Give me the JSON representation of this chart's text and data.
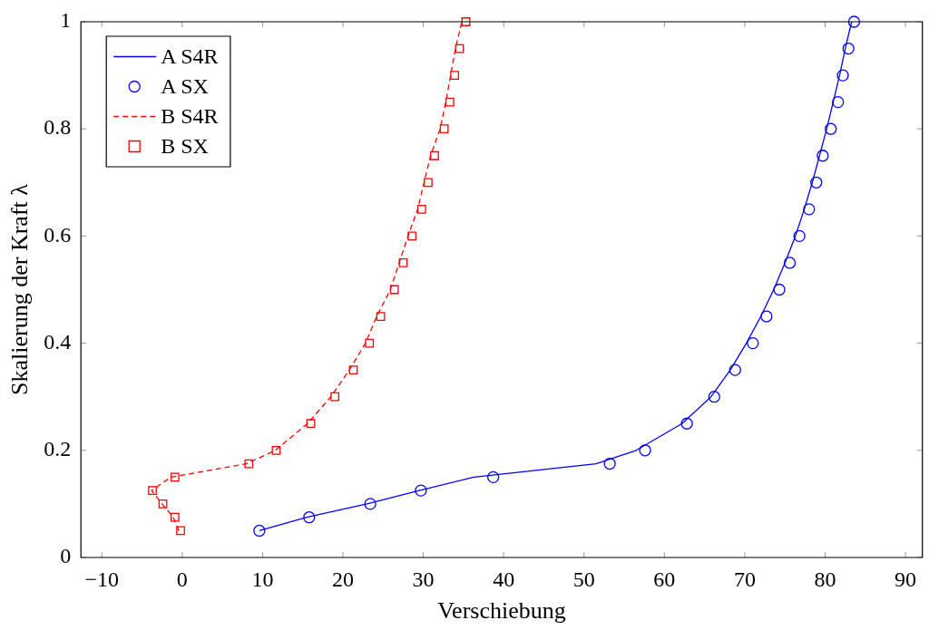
{
  "chart_data": {
    "type": "line",
    "xlabel": "Verschiebung",
    "ylabel": "Skalierung der Kraft λ",
    "xlim": [
      -12.6,
      92.1
    ],
    "ylim": [
      0,
      1
    ],
    "xticks": [
      {
        "value": -10,
        "label": "−10"
      },
      0,
      10,
      20,
      30,
      40,
      50,
      60,
      70,
      80,
      90
    ],
    "yticks": [
      0,
      0.2,
      0.4,
      0.6,
      0.8,
      1
    ],
    "legend": "top left",
    "series": [
      {
        "name": "A S4R",
        "type": "line",
        "color": "#0000ff",
        "marker": "none",
        "line_style": "solid",
        "x": [
          9.6,
          15.5,
          23,
          29.5,
          36.3,
          51.5,
          56.5,
          62.2,
          65.8,
          68.2,
          70.2,
          72.0,
          73.6,
          75.0,
          76.3,
          77.4,
          78.4,
          79.3,
          80.2,
          81.0,
          81.8,
          82.5,
          83.3
        ],
        "values": [
          0.05,
          0.075,
          0.1,
          0.125,
          0.15,
          0.175,
          0.2,
          0.25,
          0.3,
          0.35,
          0.4,
          0.45,
          0.5,
          0.55,
          0.6,
          0.65,
          0.7,
          0.75,
          0.8,
          0.85,
          0.9,
          0.95,
          1
        ]
      },
      {
        "name": "A SX",
        "type": "scatter",
        "color": "#0000ff",
        "marker": "circle",
        "x": [
          9.6,
          15.8,
          23.4,
          29.7,
          38.7,
          53.2,
          57.6,
          62.8,
          66.2,
          68.8,
          71.0,
          72.7,
          74.3,
          75.6,
          76.8,
          78.0,
          78.9,
          79.7,
          80.7,
          81.6,
          82.2,
          82.9,
          83.6
        ],
        "values": [
          0.05,
          0.075,
          0.1,
          0.125,
          0.15,
          0.175,
          0.2,
          0.25,
          0.3,
          0.35,
          0.4,
          0.45,
          0.5,
          0.55,
          0.6,
          0.65,
          0.7,
          0.75,
          0.8,
          0.85,
          0.9,
          0.95,
          1
        ]
      },
      {
        "name": "B S4R",
        "type": "line",
        "color": "#ff0000",
        "marker": "none",
        "line_style": "dashed",
        "x": [
          -0.4,
          -1.1,
          -2.5,
          -3.8,
          -1.4,
          8.0,
          11.6,
          15.6,
          18.5,
          20.8,
          22.8,
          24.2,
          25.9,
          27.0,
          28.1,
          29.3,
          30.1,
          30.9,
          32.1,
          32.8,
          33.4,
          34.0,
          34.8
        ],
        "values": [
          0.05,
          0.075,
          0.1,
          0.125,
          0.15,
          0.175,
          0.2,
          0.25,
          0.3,
          0.35,
          0.4,
          0.45,
          0.5,
          0.55,
          0.6,
          0.65,
          0.7,
          0.75,
          0.8,
          0.85,
          0.9,
          0.95,
          1
        ]
      },
      {
        "name": "B SX",
        "type": "scatter",
        "color": "#ff0000",
        "marker": "square",
        "x": [
          -0.2,
          -0.9,
          -2.4,
          -3.7,
          -0.9,
          8.3,
          11.7,
          16.0,
          19.0,
          21.3,
          23.3,
          24.7,
          26.4,
          27.5,
          28.6,
          29.8,
          30.6,
          31.4,
          32.6,
          33.3,
          33.9,
          34.5,
          35.3
        ],
        "values": [
          0.05,
          0.075,
          0.1,
          0.125,
          0.15,
          0.175,
          0.2,
          0.25,
          0.3,
          0.35,
          0.4,
          0.45,
          0.5,
          0.55,
          0.6,
          0.65,
          0.7,
          0.75,
          0.8,
          0.85,
          0.9,
          0.95,
          1
        ]
      }
    ]
  }
}
